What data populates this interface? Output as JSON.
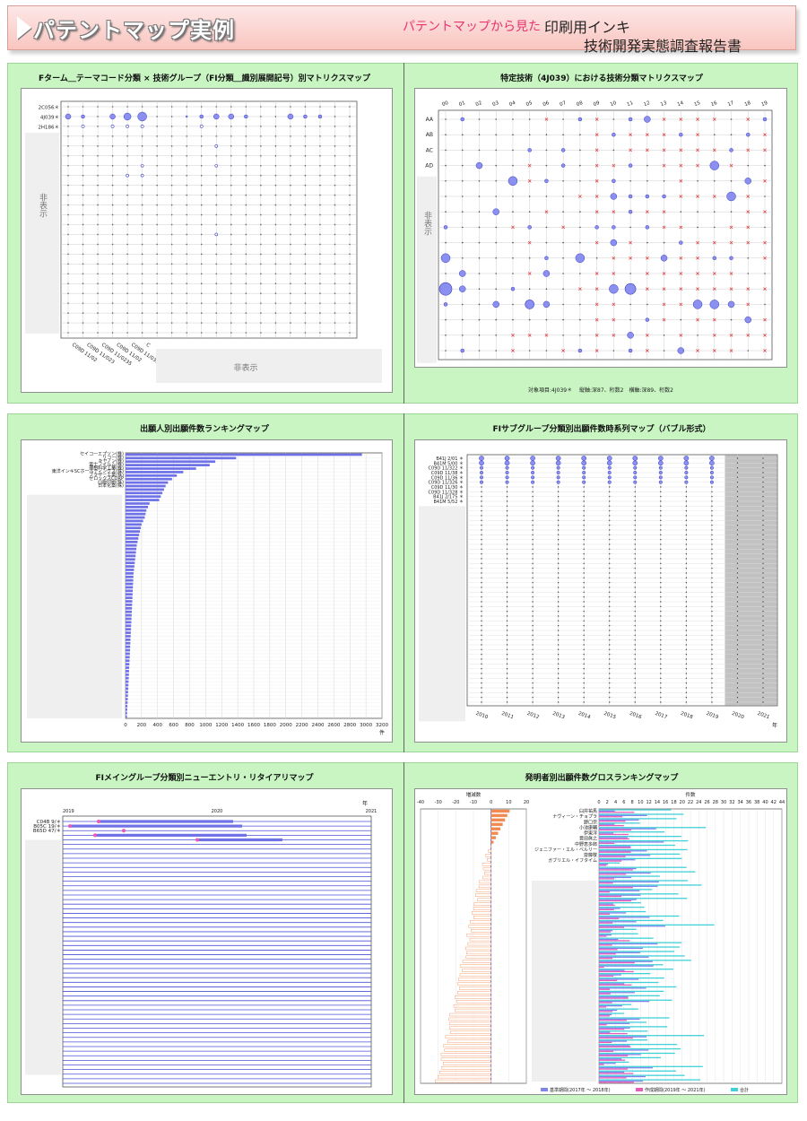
{
  "header": {
    "title": "パテントマップ実例",
    "subtitle_pink": "パテントマップから見た",
    "subtitle_line1": "印刷用インキ",
    "subtitle_line2": "技術開発実態調査報告書"
  },
  "hidden_label": "非表示",
  "panels": {
    "p1": {
      "title": "Fターム＿テーマコード分類 × 技術グループ（FI分類＿識別展開記号）別マトリクスマップ",
      "row_labels": [
        "2C056＊",
        "4J039＊",
        "2H186＊"
      ],
      "col_labels": [
        "C09D 11/02",
        "C09D 11/023",
        "C09D 11/0235",
        "C09D 11/02",
        "C09D 11/033",
        "C"
      ],
      "hidden_y": "非表示",
      "hidden_x": "非表示"
    },
    "p2": {
      "title": "特定技術（4J039）における技術分類マトリクスマップ",
      "row_labels": [
        "AA",
        "AB",
        "AC",
        "AD"
      ],
      "col_labels": [
        "00",
        "01",
        "02",
        "03",
        "04",
        "05",
        "06",
        "07",
        "08",
        "09",
        "10",
        "11",
        "12",
        "13",
        "14",
        "15",
        "16",
        "17",
        "18",
        "19"
      ],
      "hidden_y": "非表示",
      "footer": "対象項目:4J039＊　 縦軸:深87、桁数2　横軸:深89、桁数2"
    },
    "p3": {
      "title": "出願人別出願件数ランキングマップ",
      "unit": "件"
    },
    "p4": {
      "title": "FIサブグループ分類別出願件数時系列マップ（バブル形式）",
      "row_labels": [
        "B41J 2/01 ＊",
        "B41M 5/00 ＊",
        "C09D 11/322 ＊",
        "C09D 11/38 ＊",
        "C09D 11/36 ＊",
        "C09D 11/326 ＊",
        "C09D 11/30 ＊",
        "C09D 11/328 ＊",
        "B41J 2/175 ＊",
        "B41M 5/52 ＊"
      ],
      "unit": "年"
    },
    "p5": {
      "title": "FIメイングループ分類別ニューエントリ・リタイアリマップ",
      "row_labels": [
        "C04B 9/＊",
        "B05C 19/＊",
        "B65D 47/＊"
      ],
      "year_start": "2019",
      "year_mid": "2020",
      "year_end": "2021",
      "unit": "年"
    },
    "p6": {
      "title": "発明者別出願件数グロスランキングマップ",
      "left_header": "増減数",
      "right_header": "件数",
      "names": [
        "臼井祐馬",
        "ナヴィーン・チョプラ",
        "野口宗",
        "小池康輔",
        "伊東淳",
        "豊田眞之",
        "中野恵多郎",
        "ジェニファー・エル・ベルリー",
        "齋藤敬",
        "ガブリエル・イフタイム"
      ],
      "legend": [
        "基準期間(2017年 ～ 2018年)",
        "作成期間(2019年 ～ 2021年)",
        "合計"
      ]
    }
  },
  "colors": {
    "bubble": "#8a8ff0",
    "bar": "#6e72e6",
    "cross": "#e23a3a",
    "magenta": "#e85ab8",
    "cyan": "#3fd0d8",
    "orange": "#f08a50",
    "panel_bg": "#c8f5c2"
  },
  "chart_data": [
    {
      "id": "p3",
      "type": "bar",
      "title": "出願人別出願件数ランキングマップ",
      "categories": [
        "セイコーエプソン(株)",
        "リコー(株)",
        "キヤノン(株)",
        "富士フイルム(株)",
        "理想科学工業(株)",
        "東洋インキSCホールディングス(株)",
        "ブラザー工業(株)",
        "ゼロックスCORP",
        "凸版印刷(株)",
        "日本化薬(株)"
      ],
      "values": [
        2950,
        1380,
        1120,
        1050,
        880,
        720,
        640,
        580,
        530,
        500
      ],
      "hidden_values": [
        480,
        460,
        440,
        420,
        300,
        280,
        260,
        250,
        240,
        220,
        200,
        190,
        180,
        170,
        160,
        150,
        140,
        135,
        130,
        125,
        120,
        115,
        110,
        105,
        100,
        98,
        96,
        94,
        92,
        90,
        88,
        86,
        84,
        82,
        80,
        78,
        76,
        74,
        72,
        70,
        68,
        66,
        64,
        62,
        60,
        58,
        56,
        54,
        52,
        50,
        48,
        46,
        44,
        42,
        40,
        38,
        36,
        34,
        32,
        30,
        28,
        26,
        24,
        22,
        20,
        18
      ],
      "xlabel": "件",
      "xlim": [
        0,
        3200
      ],
      "xticks": [
        0,
        200,
        400,
        600,
        800,
        1000,
        1200,
        1400,
        1600,
        1800,
        2000,
        2200,
        2400,
        2600,
        2800,
        3000,
        3200
      ]
    },
    {
      "id": "p4",
      "type": "scatter",
      "title": "FIサブグループ分類別出願件数時系列マップ（バブル形式）",
      "years": [
        "2010",
        "2011",
        "2012",
        "2013",
        "2014",
        "2015",
        "2016",
        "2017",
        "2018",
        "2019",
        "2020",
        "2021"
      ],
      "xlabel": "年"
    },
    {
      "id": "p6",
      "type": "bar",
      "title": "発明者別出願件数グロスランキングマップ",
      "left_xticks": [
        -40,
        -30,
        -20,
        -10,
        0,
        10,
        20
      ],
      "right_xticks": [
        0,
        2,
        4,
        6,
        8,
        10,
        12,
        14,
        16,
        18,
        20,
        22,
        24,
        26,
        28,
        30,
        32,
        34,
        36,
        38,
        40,
        42,
        44
      ]
    }
  ]
}
